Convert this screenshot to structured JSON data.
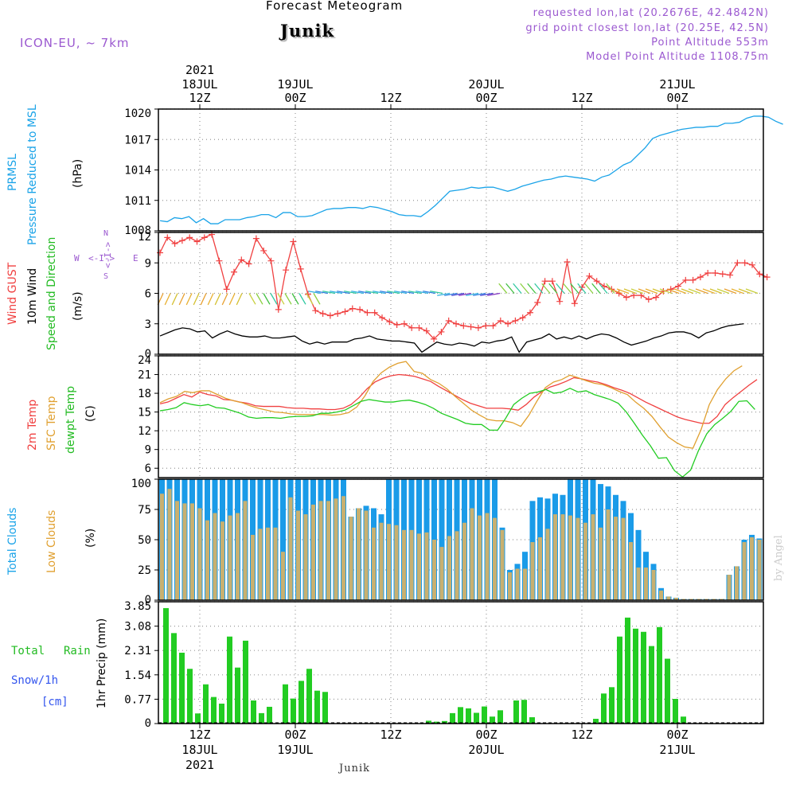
{
  "header": {
    "title": "Forecast Meteogram",
    "location": "Junik",
    "model": "ICON-EU, ~ 7km",
    "requested": "requested lon,lat (20.2676E, 42.4842N)",
    "gridpoint": "grid point closest lon,lat (20.25E, 42.5N)",
    "point_alt": "Point Altitude 553m",
    "model_alt": "Model Point Altitude 1108.75m"
  },
  "footer": {
    "location": "Junik",
    "credit": "by Angel"
  },
  "time_axis": {
    "top_year": "2021",
    "labels": [
      {
        "t": 5,
        "top1": "18JUL",
        "top2": "12Z",
        "bot1": "12Z",
        "bot2": "18JUL"
      },
      {
        "t": 17,
        "top1": "19JUL",
        "top2": "00Z",
        "bot1": "00Z",
        "bot2": "19JUL"
      },
      {
        "t": 29,
        "top1": "",
        "top2": "12Z",
        "bot1": "12Z",
        "bot2": ""
      },
      {
        "t": 41,
        "top1": "20JUL",
        "top2": "00Z",
        "bot1": "00Z",
        "bot2": "20JUL"
      },
      {
        "t": 53,
        "top1": "",
        "top2": "12Z",
        "bot1": "12Z",
        "bot2": ""
      },
      {
        "t": 65,
        "top1": "21JUL",
        "top2": "00Z",
        "bot1": "00Z",
        "bot2": "21JUL"
      }
    ],
    "bottom_year": "2021"
  },
  "panels": {
    "pressure": {
      "labels": [
        "PRMSL",
        "Pressure Reduced to MSL"
      ],
      "unit": "(hPa)",
      "ticks": [
        "1008",
        "1011",
        "1014",
        "1017",
        "1020"
      ]
    },
    "wind": {
      "labels": [
        "Wind GUST",
        "10m Wind",
        "Speed and Direction"
      ],
      "unit": "(m/s)",
      "ticks": [
        "0",
        "3",
        "6",
        "9",
        "12"
      ],
      "compass": {
        "w": "W",
        "e": "E",
        "n": "N",
        "s": "S",
        "arrows": "<-I->"
      }
    },
    "temp": {
      "labels": [
        "2m Temp",
        "SFC Temp",
        "dewpt Temp"
      ],
      "unit": "(C)",
      "ticks": [
        "6",
        "9",
        "12",
        "15",
        "18",
        "21",
        "24"
      ]
    },
    "clouds": {
      "labels": [
        "Total Clouds",
        "Low Clouds"
      ],
      "unit": "(%)",
      "ticks": [
        "0",
        "25",
        "50",
        "75",
        "100"
      ]
    },
    "precip": {
      "labels": [
        "Total",
        "Rain",
        "Snow/1h",
        "[cm]"
      ],
      "unit": "1hr Precip (mm)",
      "ticks": [
        "0",
        "0.77",
        "1.54",
        "2.31",
        "3.08",
        "3.85"
      ]
    }
  },
  "colors": {
    "pressure": "#1aa3e8",
    "gust": "#f04040",
    "wind10": "#000000",
    "t2m": "#f04040",
    "tsfc": "#e0a030",
    "dewpt": "#22cc22",
    "total_clouds": "#1a9be8",
    "low_clouds": "#c8b070",
    "precip": "#22cc22",
    "label_blue": "#1aa3e8",
    "label_red": "#f04040",
    "label_orange": "#e0a030",
    "label_green": "#22bb22",
    "label_snow": "#3355ee",
    "title": "#f5c890",
    "grid": "#999999"
  },
  "chart_data": [
    {
      "type": "line",
      "title": "PRMSL Pressure Reduced to MSL",
      "ylabel": "hPa",
      "x_start": "2021-07-18 06Z",
      "x_step_hours": 1,
      "ylim": [
        1008,
        1020
      ],
      "series": [
        {
          "name": "PRMSL",
          "values": [
            1009.0,
            1008.9,
            1009.3,
            1009.2,
            1009.4,
            1008.8,
            1009.2,
            1008.7,
            1008.7,
            1009.1,
            1009.1,
            1009.1,
            1009.3,
            1009.4,
            1009.6,
            1009.6,
            1009.3,
            1009.8,
            1009.8,
            1009.4,
            1009.4,
            1009.5,
            1009.8,
            1010.1,
            1010.2,
            1010.2,
            1010.3,
            1010.3,
            1010.2,
            1010.4,
            1010.3,
            1010.1,
            1009.9,
            1009.6,
            1009.5,
            1009.5,
            1009.4,
            1009.9,
            1010.5,
            1011.2,
            1011.9,
            1012.0,
            1012.1,
            1012.3,
            1012.2,
            1012.3,
            1012.3,
            1012.1,
            1011.9,
            1012.1,
            1012.4,
            1012.6,
            1012.8,
            1013.0,
            1013.1,
            1013.3,
            1013.4,
            1013.3,
            1013.2,
            1013.1,
            1012.9,
            1013.3,
            1013.5,
            1014.0,
            1014.5,
            1014.8,
            1015.5,
            1016.2,
            1017.1,
            1017.4,
            1017.6,
            1017.8,
            1018.0,
            1018.1,
            1018.2,
            1018.2,
            1018.3,
            1018.3,
            1018.6,
            1018.6,
            1018.7,
            1019.1,
            1019.3,
            1019.3,
            1019.2,
            1018.8,
            1018.5
          ]
        }
      ]
    },
    {
      "type": "line",
      "title": "Wind GUST, 10m Wind Speed and Direction",
      "ylabel": "m/s",
      "x_start": "2021-07-18 06Z",
      "x_step_hours": 1,
      "ylim": [
        0,
        12
      ],
      "series": [
        {
          "name": "Wind GUST",
          "values": [
            10.0,
            11.5,
            10.9,
            11.2,
            11.5,
            11.1,
            11.5,
            11.8,
            9.2,
            6.4,
            8.1,
            9.3,
            8.9,
            11.4,
            10.2,
            9.2,
            4.4,
            8.3,
            11.1,
            8.4,
            5.9,
            4.3,
            4.0,
            3.8,
            4.0,
            4.2,
            4.5,
            4.4,
            4.1,
            4.1,
            3.6,
            3.2,
            2.9,
            3.0,
            2.6,
            2.6,
            2.3,
            1.5,
            2.2,
            3.3,
            3.0,
            2.8,
            2.7,
            2.6,
            2.8,
            2.8,
            3.3,
            3.0,
            3.3,
            3.6,
            4.1,
            5.1,
            7.2,
            7.2,
            5.2,
            9.1,
            5.0,
            6.6,
            7.7,
            7.2,
            6.7,
            6.4,
            6.0,
            5.6,
            5.8,
            5.8,
            5.4,
            5.6,
            6.2,
            6.4,
            6.7,
            7.3,
            7.3,
            7.6,
            8.0,
            8.0,
            7.9,
            7.8,
            9.0,
            9.0,
            8.8,
            7.9,
            7.6
          ]
        },
        {
          "name": "10m Wind",
          "values": [
            1.8,
            2.1,
            2.4,
            2.6,
            2.5,
            2.2,
            2.3,
            1.6,
            2.0,
            2.3,
            2.0,
            1.8,
            1.7,
            1.7,
            1.8,
            1.6,
            1.6,
            1.7,
            1.8,
            1.3,
            1.0,
            1.2,
            1.0,
            1.2,
            1.2,
            1.2,
            1.5,
            1.6,
            1.8,
            1.5,
            1.4,
            1.3,
            1.3,
            1.2,
            1.1,
            0.2,
            0.7,
            1.2,
            1.0,
            0.9,
            1.1,
            1.0,
            0.8,
            1.2,
            1.1,
            1.3,
            1.4,
            1.7,
            0.2,
            1.2,
            1.4,
            1.6,
            2.0,
            1.5,
            1.7,
            1.5,
            1.8,
            1.5,
            1.8,
            2.0,
            1.9,
            1.6,
            1.2,
            0.9,
            1.1,
            1.3,
            1.6,
            1.8,
            2.1,
            2.2,
            2.2,
            2.0,
            1.6,
            2.1,
            2.3,
            2.6,
            2.8,
            2.9,
            3.0
          ]
        }
      ]
    },
    {
      "type": "line",
      "title": "2m Temp, SFC Temp, dewpt Temp",
      "ylabel": "C",
      "x_start": "2021-07-18 06Z",
      "x_step_hours": 1,
      "ylim": [
        4.5,
        24
      ],
      "series": [
        {
          "name": "2m Temp",
          "values": [
            16.3,
            16.6,
            17.2,
            17.8,
            17.4,
            18.2,
            17.8,
            17.6,
            17.0,
            16.9,
            16.6,
            16.4,
            16.0,
            15.9,
            15.9,
            15.9,
            15.7,
            15.6,
            15.6,
            15.5,
            15.5,
            15.4,
            15.4,
            15.6,
            16.2,
            17.3,
            18.7,
            19.8,
            20.4,
            20.8,
            21.0,
            20.9,
            20.7,
            20.3,
            19.9,
            19.1,
            18.4,
            17.7,
            17.0,
            16.4,
            16.0,
            15.6,
            15.6,
            15.6,
            15.5,
            15.3,
            16.2,
            17.4,
            18.3,
            19.0,
            19.4,
            19.9,
            20.5,
            20.3,
            20.0,
            19.8,
            19.4,
            18.9,
            18.5,
            18.0,
            17.3,
            16.6,
            16.0,
            15.4,
            14.8,
            14.2,
            13.8,
            13.5,
            13.2,
            13.2,
            14.3,
            16.2,
            17.3,
            18.3,
            19.3,
            20.2
          ]
        },
        {
          "name": "SFC Temp",
          "values": [
            16.5,
            17.1,
            17.5,
            18.3,
            18.1,
            18.4,
            18.4,
            17.8,
            17.2,
            16.8,
            16.5,
            16.0,
            15.6,
            15.3,
            15.0,
            14.9,
            14.7,
            14.6,
            14.6,
            14.6,
            14.6,
            14.5,
            14.6,
            14.9,
            15.8,
            17.6,
            19.9,
            21.3,
            22.2,
            22.8,
            23.1,
            21.5,
            21.2,
            20.2,
            19.6,
            18.7,
            17.5,
            16.4,
            15.3,
            14.5,
            13.8,
            13.6,
            13.6,
            13.3,
            12.7,
            14.5,
            16.8,
            18.9,
            19.8,
            20.2,
            20.9,
            20.5,
            20.0,
            19.6,
            19.4,
            18.9,
            18.3,
            17.8,
            16.6,
            15.6,
            14.3,
            12.6,
            11.0,
            10.1,
            9.4,
            9.2,
            12.2,
            16.2,
            18.6,
            20.3,
            21.6,
            22.4
          ]
        },
        {
          "name": "dewpt Temp",
          "values": [
            15.2,
            15.4,
            15.7,
            16.5,
            16.2,
            16.0,
            16.2,
            15.7,
            15.6,
            15.2,
            14.8,
            14.2,
            14.0,
            14.1,
            14.1,
            14.0,
            14.2,
            14.3,
            14.3,
            14.4,
            14.8,
            14.8,
            15.0,
            15.3,
            16.0,
            16.7,
            17.0,
            16.8,
            16.6,
            16.6,
            16.8,
            16.9,
            16.6,
            16.2,
            15.6,
            14.8,
            14.3,
            13.8,
            13.2,
            13.0,
            13.0,
            12.1,
            12.1,
            14.0,
            16.2,
            17.2,
            18.0,
            18.2,
            18.6,
            18.0,
            18.2,
            18.8,
            18.2,
            18.4,
            17.8,
            17.4,
            17.0,
            16.4,
            15.0,
            13.2,
            11.3,
            9.6,
            7.6,
            7.7,
            5.6,
            4.6,
            5.7,
            8.9,
            11.5,
            13.0,
            14.0,
            15.1,
            16.7,
            16.8,
            15.4
          ]
        }
      ]
    },
    {
      "type": "bar",
      "title": "Total Clouds, Low Clouds",
      "ylabel": "%",
      "x_start": "2021-07-18 06Z",
      "x_step_hours": 1,
      "ylim": [
        0,
        100
      ],
      "series": [
        {
          "name": "Total Clouds",
          "values": [
            100,
            100,
            100,
            100,
            100,
            100,
            100,
            100,
            100,
            100,
            100,
            100,
            100,
            100,
            100,
            100,
            100,
            100,
            100,
            100,
            100,
            100,
            100,
            100,
            100,
            69,
            76,
            78,
            76,
            71,
            100,
            100,
            100,
            100,
            100,
            100,
            100,
            100,
            100,
            100,
            100,
            100,
            100,
            100,
            100,
            60,
            25,
            30,
            40,
            82,
            85,
            84,
            88,
            87,
            100,
            100,
            100,
            100,
            96,
            94,
            87,
            82,
            72,
            58,
            40,
            30,
            10,
            3,
            2,
            1,
            1,
            1,
            1,
            1,
            1,
            21,
            28,
            50,
            54,
            51
          ]
        },
        {
          "name": "Low Clouds",
          "values": [
            88,
            92,
            82,
            80,
            80,
            76,
            66,
            72,
            65,
            70,
            72,
            82,
            54,
            59,
            60,
            60,
            40,
            85,
            74,
            71,
            79,
            82,
            82,
            84,
            86,
            69,
            76,
            74,
            60,
            64,
            63,
            62,
            58,
            58,
            55,
            56,
            50,
            44,
            53,
            57,
            64,
            76,
            70,
            72,
            68,
            58,
            23,
            26,
            26,
            48,
            52,
            59,
            71,
            71,
            70,
            68,
            64,
            71,
            60,
            75,
            69,
            68,
            48,
            27,
            27,
            25,
            8,
            3,
            2,
            1,
            1,
            1,
            1,
            1,
            1,
            21,
            28,
            48,
            52,
            50
          ]
        }
      ]
    },
    {
      "type": "bar",
      "title": "1hr Precip",
      "ylabel": "mm",
      "x_start": "2021-07-18 06Z",
      "x_step_hours": 1,
      "ylim": [
        0,
        3.85
      ],
      "series": [
        {
          "name": "Total Rain",
          "values": [
            3.65,
            2.86,
            2.24,
            1.73,
            0.32,
            1.24,
            0.84,
            0.63,
            2.75,
            1.77,
            2.62,
            0.73,
            0.33,
            0.53,
            0.0,
            1.24,
            0.79,
            1.35,
            1.73,
            1.04,
            1.0,
            0,
            0,
            0,
            0,
            0,
            0,
            0,
            0,
            0,
            0,
            0,
            0,
            0.09,
            0.06,
            0.08,
            0.33,
            0.52,
            0.48,
            0.34,
            0.54,
            0.22,
            0.42,
            0,
            0.73,
            0.75,
            0.2,
            0,
            0,
            0,
            0,
            0,
            0,
            0,
            0.15,
            0.95,
            1.15,
            2.75,
            3.35,
            3.0,
            2.9,
            2.45,
            3.05,
            2.05,
            0.78,
            0.22,
            0,
            0,
            0,
            0,
            0,
            0,
            0,
            0,
            0,
            0,
            0,
            0,
            0
          ]
        }
      ]
    }
  ]
}
